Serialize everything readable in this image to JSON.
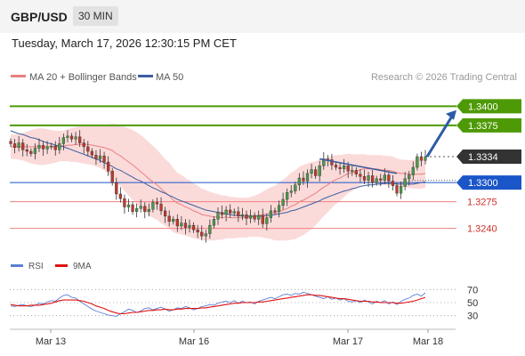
{
  "header": {
    "symbol": "GBP/USD",
    "timeframe": "30 MIN"
  },
  "datetime": "Tuesday, March 17, 2026 12:30:15 PM CET",
  "copyright": "Research © 2026 Trading Central",
  "colors": {
    "candle_up": "#4a9a4a",
    "candle_down": "#c0392b",
    "bollinger_fill": "#fbdada",
    "ma20": "#e88080",
    "ma50": "#3b5f9e",
    "resistance": "#4e9a06",
    "pivot": "#1a56c8",
    "support": "#f08080",
    "current": "#333333",
    "rsi": "#5b7fd4",
    "rsi_ma": "#e01010",
    "arrow": "#2a5aa8",
    "trendline": "#3b5f9e"
  },
  "chart_data": [
    {
      "type": "candlestick",
      "title": "",
      "legend": [
        {
          "name": "MA 20 + Bollinger Bands",
          "color": "#e88080"
        },
        {
          "name": "MA 50",
          "color": "#3b5f9e"
        }
      ],
      "y_range": [
        1.3215,
        1.3425
      ],
      "x_labels": [
        "Mar 13",
        "Mar 16",
        "Mar 17",
        "Mar 18"
      ],
      "levels": [
        {
          "value": 1.34,
          "label": "1.3400",
          "kind": "resistance"
        },
        {
          "value": 1.3375,
          "label": "1.3375",
          "kind": "resistance"
        },
        {
          "value": 1.3334,
          "label": "1.3334",
          "kind": "current"
        },
        {
          "value": 1.33,
          "label": "1.3300",
          "kind": "pivot"
        },
        {
          "value": 1.3275,
          "label": "1.3275",
          "kind": "support"
        },
        {
          "value": 1.324,
          "label": "1.3240",
          "kind": "support"
        }
      ],
      "closes": [
        1.3351,
        1.3346,
        1.3352,
        1.3343,
        1.3341,
        1.3338,
        1.3345,
        1.3349,
        1.3344,
        1.3347,
        1.3348,
        1.3343,
        1.3351,
        1.3359,
        1.3361,
        1.3357,
        1.336,
        1.3352,
        1.3347,
        1.3341,
        1.3336,
        1.3331,
        1.3335,
        1.3327,
        1.3315,
        1.33,
        1.3285,
        1.3279,
        1.3268,
        1.3271,
        1.3262,
        1.3266,
        1.3269,
        1.3262,
        1.3265,
        1.3274,
        1.3272,
        1.3263,
        1.3256,
        1.3249,
        1.3252,
        1.3243,
        1.3247,
        1.3241,
        1.3244,
        1.3238,
        1.3235,
        1.323,
        1.3233,
        1.3244,
        1.3252,
        1.3261,
        1.3258,
        1.3264,
        1.326,
        1.3262,
        1.3256,
        1.3258,
        1.3253,
        1.3257,
        1.3252,
        1.3257,
        1.3246,
        1.3254,
        1.3263,
        1.3262,
        1.327,
        1.3278,
        1.3287,
        1.3289,
        1.3297,
        1.3306,
        1.3302,
        1.3312,
        1.3317,
        1.3309,
        1.3322,
        1.3331,
        1.333,
        1.3323,
        1.332,
        1.3318,
        1.3322,
        1.3315,
        1.3316,
        1.3311,
        1.3308,
        1.3303,
        1.3309,
        1.33,
        1.3305,
        1.3303,
        1.331,
        1.3302,
        1.3296,
        1.3286,
        1.3295,
        1.3305,
        1.331,
        1.332,
        1.3334,
        1.3329,
        1.3334
      ],
      "ma20": [
        1.3347,
        1.3347,
        1.3347,
        1.3347,
        1.3347,
        1.3347,
        1.3347,
        1.3347,
        1.3347,
        1.3347,
        1.3347,
        1.3347,
        1.3348,
        1.3348,
        1.3349,
        1.3349,
        1.335,
        1.335,
        1.335,
        1.335,
        1.3349,
        1.3348,
        1.3347,
        1.3346,
        1.3344,
        1.3342,
        1.3338,
        1.3335,
        1.3331,
        1.3327,
        1.3323,
        1.3319,
        1.3314,
        1.331,
        1.3305,
        1.3301,
        1.3297,
        1.3292,
        1.3287,
        1.3283,
        1.3277,
        1.3273,
        1.3271,
        1.3268,
        1.3266,
        1.3263,
        1.3261,
        1.3258,
        1.3257,
        1.3256,
        1.3255,
        1.3255,
        1.3254,
        1.3255,
        1.3254,
        1.3254,
        1.3254,
        1.3254,
        1.3254,
        1.3255,
        1.3256,
        1.3257,
        1.3258,
        1.3259,
        1.326,
        1.326,
        1.3262,
        1.3264,
        1.3266,
        1.3269,
        1.3271,
        1.3275,
        1.3277,
        1.328,
        1.3283,
        1.3286,
        1.329,
        1.3294,
        1.3297,
        1.3301,
        1.3304,
        1.3306,
        1.3309,
        1.3312,
        1.3313,
        1.3315,
        1.3317,
        1.3318,
        1.3318,
        1.3318,
        1.3318,
        1.3317,
        1.3316,
        1.3316,
        1.3315,
        1.3313,
        1.3312,
        1.3312,
        1.3311,
        1.3311,
        1.3311,
        1.3311,
        1.3312
      ],
      "ma50": [
        1.3368,
        1.3366,
        1.3364,
        1.3363,
        1.3361,
        1.3359,
        1.3358,
        1.3356,
        1.3354,
        1.3352,
        1.3351,
        1.3349,
        1.3348,
        1.3347,
        1.3345,
        1.3343,
        1.3341,
        1.3339,
        1.3337,
        1.3335,
        1.3333,
        1.3331,
        1.3329,
        1.3326,
        1.3324,
        1.3321,
        1.3318,
        1.3316,
        1.3313,
        1.331,
        1.3307,
        1.3304,
        1.3302,
        1.3299,
        1.3296,
        1.3293,
        1.3291,
        1.3288,
        1.3286,
        1.3283,
        1.3281,
        1.3278,
        1.3276,
        1.3274,
        1.3272,
        1.327,
        1.3268,
        1.3266,
        1.3264,
        1.3263,
        1.3262,
        1.3261,
        1.326,
        1.3259,
        1.3258,
        1.3257,
        1.3257,
        1.3256,
        1.3256,
        1.3256,
        1.3256,
        1.3256,
        1.3256,
        1.3257,
        1.3257,
        1.3258,
        1.3259,
        1.326,
        1.3261,
        1.3263,
        1.3264,
        1.3266,
        1.3268,
        1.327,
        1.3272,
        1.3274,
        1.3276,
        1.3279,
        1.3281,
        1.3283,
        1.3285,
        1.3287,
        1.3289,
        1.329,
        1.3292,
        1.3293,
        1.3295,
        1.3296,
        1.3297,
        1.3297,
        1.3298,
        1.3298,
        1.3299,
        1.3299,
        1.3299,
        1.3298,
        1.3298,
        1.3298,
        1.3298,
        1.3298,
        1.3299,
        1.33,
        1.3301
      ],
      "bb_width": [
        0.0016,
        0.0016,
        0.0017,
        0.0018,
        0.002,
        0.0022,
        0.0023,
        0.0024,
        0.0024,
        0.0023,
        0.0022,
        0.0021,
        0.002,
        0.002,
        0.0021,
        0.0022,
        0.0023,
        0.0024,
        0.0025,
        0.0026,
        0.0026,
        0.0027,
        0.0028,
        0.003,
        0.0032,
        0.0035,
        0.0038,
        0.004,
        0.0042,
        0.0044,
        0.0046,
        0.0047,
        0.0048,
        0.0048,
        0.0048,
        0.0047,
        0.0046,
        0.0045,
        0.0044,
        0.0043,
        0.0042,
        0.004,
        0.0039,
        0.0038,
        0.0037,
        0.0036,
        0.0035,
        0.0034,
        0.0033,
        0.0032,
        0.0031,
        0.003,
        0.0029,
        0.0028,
        0.0027,
        0.0027,
        0.0026,
        0.0026,
        0.0026,
        0.0026,
        0.0027,
        0.0028,
        0.003,
        0.0032,
        0.0034,
        0.0036,
        0.0038,
        0.004,
        0.0042,
        0.0044,
        0.0045,
        0.0046,
        0.0046,
        0.0045,
        0.0044,
        0.0042,
        0.004,
        0.0038,
        0.0036,
        0.0034,
        0.0032,
        0.003,
        0.0028,
        0.0026,
        0.0024,
        0.0022,
        0.002,
        0.0019,
        0.0018,
        0.0018,
        0.0018,
        0.0019,
        0.0019,
        0.0019,
        0.0019,
        0.0019,
        0.0018,
        0.0018,
        0.0018,
        0.0019,
        0.0019,
        0.0019,
        0.0019
      ]
    },
    {
      "type": "line",
      "title": "",
      "legend": [
        {
          "name": "RSI",
          "color": "#5b7fd4"
        },
        {
          "name": "9MA",
          "color": "#e01010"
        }
      ],
      "y_range": [
        20,
        80
      ],
      "y_ticks": [
        "70",
        "50",
        "30"
      ],
      "rsi": [
        45,
        44,
        46,
        47,
        45,
        44,
        46,
        49,
        48,
        51,
        53,
        52,
        57,
        61,
        62,
        58,
        57,
        52,
        48,
        44,
        40,
        37,
        35,
        33,
        31,
        30,
        29,
        33,
        36,
        40,
        38,
        35,
        37,
        41,
        42,
        39,
        41,
        43,
        40,
        37,
        39,
        42,
        41,
        44,
        42,
        39,
        41,
        44,
        45,
        47,
        46,
        49,
        51,
        52,
        50,
        53,
        49,
        52,
        50,
        51,
        48,
        52,
        54,
        56,
        58,
        56,
        59,
        62,
        63,
        61,
        64,
        63,
        66,
        64,
        62,
        60,
        58,
        56,
        59,
        55,
        57,
        54,
        56,
        52,
        51,
        53,
        50,
        54,
        51,
        48,
        52,
        50,
        53,
        48,
        51,
        47,
        52,
        55,
        57,
        61,
        63,
        60,
        65
      ],
      "rsi_ma": [
        47,
        46,
        45,
        45,
        45,
        46,
        46,
        46,
        47,
        48,
        49,
        51,
        53,
        54,
        54,
        54,
        54,
        53,
        52,
        50,
        48,
        45,
        43,
        41,
        38,
        36,
        34,
        33,
        33,
        34,
        35,
        35,
        36,
        37,
        38,
        38,
        39,
        39,
        40,
        39,
        39,
        40,
        40,
        41,
        41,
        41,
        41,
        42,
        42,
        43,
        44,
        45,
        46,
        47,
        48,
        49,
        49,
        50,
        50,
        50,
        50,
        51,
        51,
        52,
        53,
        54,
        55,
        56,
        57,
        58,
        59,
        60,
        61,
        62,
        62,
        61,
        61,
        60,
        59,
        58,
        57,
        56,
        56,
        55,
        54,
        53,
        52,
        52,
        52,
        51,
        51,
        50,
        50,
        50,
        50,
        49,
        49,
        50,
        51,
        52,
        54,
        56,
        58
      ]
    }
  ]
}
